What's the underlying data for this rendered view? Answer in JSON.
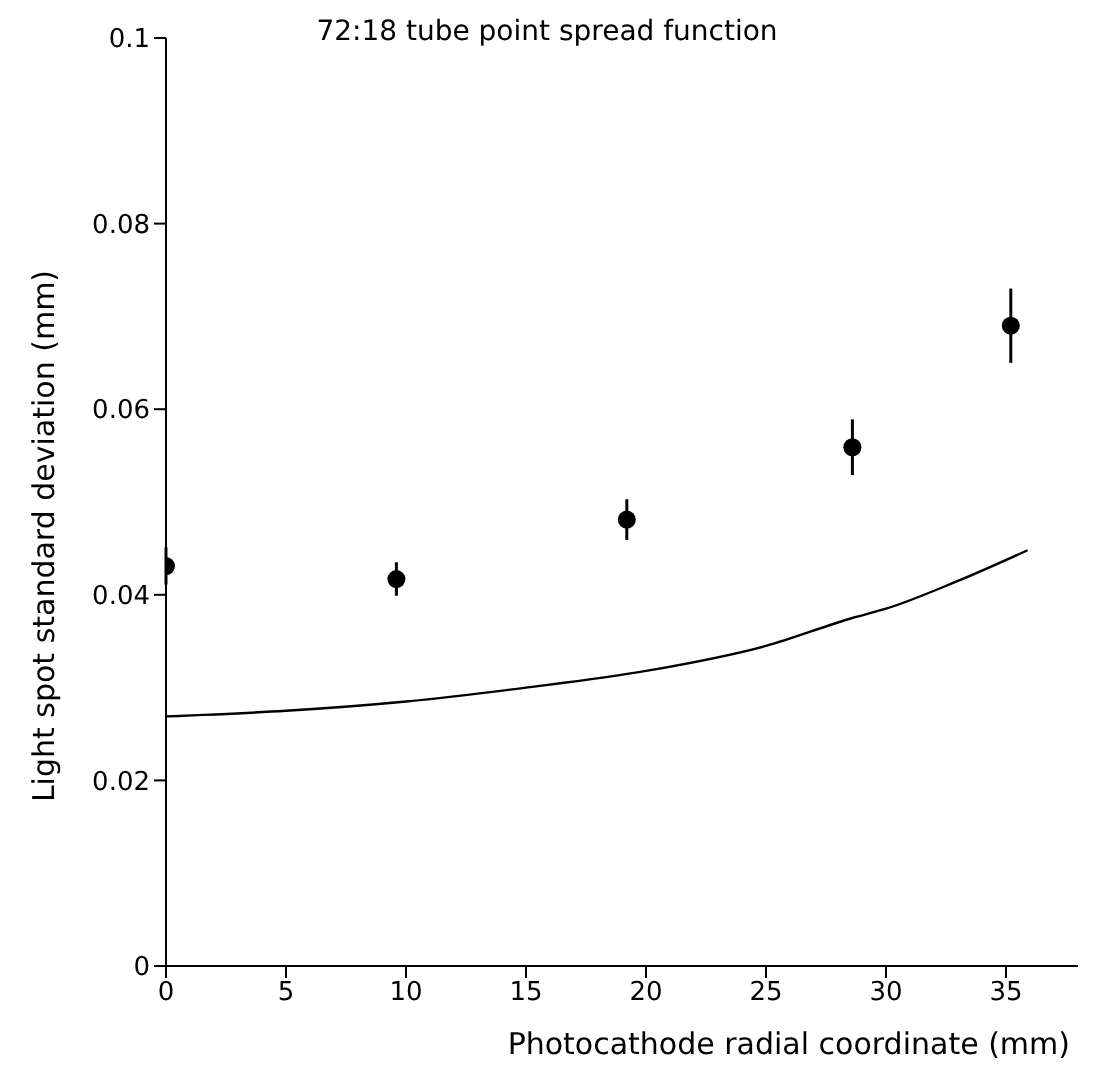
{
  "chart_data": {
    "type": "scatter",
    "title": "72:18 tube point spread function",
    "xlabel": "Photocathode radial coordinate (mm)",
    "ylabel": "Light spot standard deviation (mm)",
    "series": [
      {
        "color": "#000000",
        "marker": "circle",
        "x": [
          0,
          9.6,
          19.2,
          28.6,
          35.2
        ],
        "values": [
          0.0431,
          0.0417,
          0.0481,
          0.0559,
          0.069
        ],
        "errors": [
          0.002,
          0.0018,
          0.0022,
          0.003,
          0.004
        ]
      },
      {
        "type": "line",
        "color": "#000000",
        "marker": "none",
        "x": [
          0,
          5,
          10,
          15,
          20,
          25,
          28.6,
          30,
          33,
          35.9
        ],
        "values": [
          0.0269,
          0.0275,
          0.0285,
          0.03,
          0.0318,
          0.0345,
          0.0375,
          0.0385,
          0.0415,
          0.0448
        ]
      }
    ],
    "xlim": [
      0,
      38
    ],
    "xticks": [
      0,
      5,
      10,
      15,
      20,
      25,
      30,
      35
    ],
    "ylim": [
      0,
      0.1
    ],
    "yticks": [
      0,
      0.02,
      0.04,
      0.06,
      0.08,
      0.1
    ],
    "grid": false
  }
}
